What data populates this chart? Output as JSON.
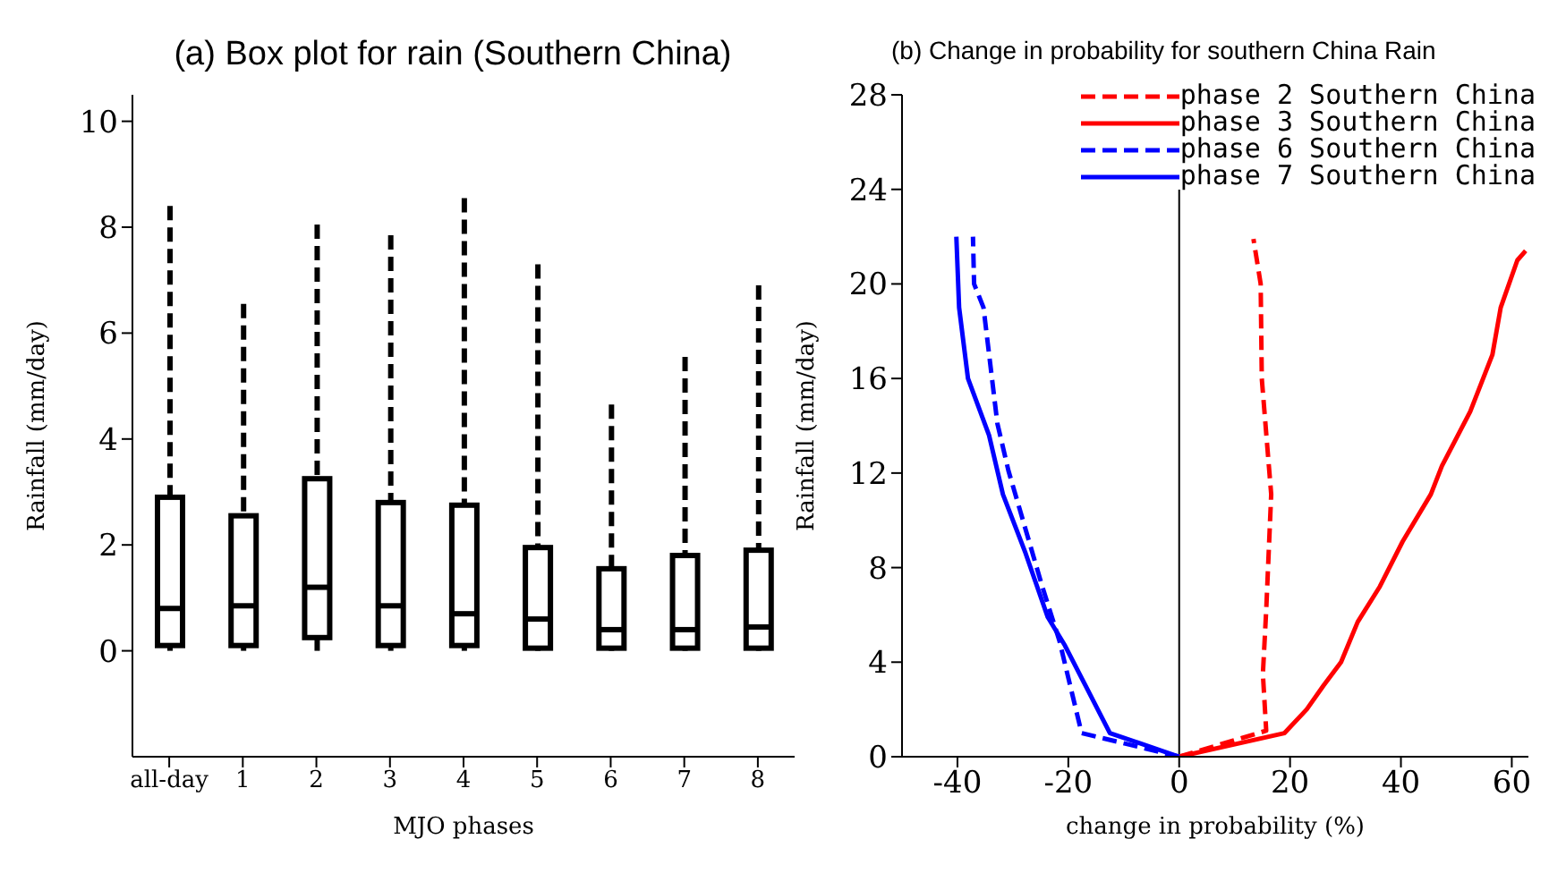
{
  "chart_data": [
    {
      "type": "box",
      "title": "(a) Box plot for rain (Southern China)",
      "xlabel": "MJO phases",
      "ylabel": "Rainfall (mm/day)",
      "categories": [
        "all-day",
        "1",
        "2",
        "3",
        "4",
        "5",
        "6",
        "7",
        "8"
      ],
      "ylim": [
        -2,
        10.5
      ],
      "yticks": [
        0,
        2,
        4,
        6,
        8,
        10
      ],
      "line_style": "dashed",
      "color": "#000000",
      "boxes": [
        {
          "low": 0,
          "q1": 0.1,
          "median": 0.8,
          "q3": 2.9,
          "high": 8.4
        },
        {
          "low": 0,
          "q1": 0.1,
          "median": 0.85,
          "q3": 2.55,
          "high": 6.55
        },
        {
          "low": 0,
          "q1": 0.25,
          "median": 1.2,
          "q3": 3.25,
          "high": 8.05
        },
        {
          "low": 0,
          "q1": 0.1,
          "median": 0.85,
          "q3": 2.8,
          "high": 7.85
        },
        {
          "low": 0,
          "q1": 0.1,
          "median": 0.7,
          "q3": 2.75,
          "high": 8.55
        },
        {
          "low": 0,
          "q1": 0.05,
          "median": 0.6,
          "q3": 1.95,
          "high": 7.3
        },
        {
          "low": 0,
          "q1": 0.05,
          "median": 0.4,
          "q3": 1.55,
          "high": 4.65
        },
        {
          "low": 0,
          "q1": 0.05,
          "median": 0.4,
          "q3": 1.8,
          "high": 5.55
        },
        {
          "low": 0,
          "q1": 0.05,
          "median": 0.45,
          "q3": 1.9,
          "high": 6.9
        }
      ]
    },
    {
      "type": "line",
      "title": "(b) Change in probability for southern China Rain",
      "xlabel": "change in probability (%)",
      "ylabel": "Rainfall (mm/day)",
      "xlim": [
        -50,
        63
      ],
      "xticks": [
        -40,
        -20,
        0,
        20,
        40,
        60
      ],
      "ylim": [
        0,
        28
      ],
      "yticks": [
        0,
        4,
        8,
        12,
        16,
        20,
        24,
        28
      ],
      "legend": "top right",
      "marker": "none",
      "ref_lines": [
        {
          "axis": "x",
          "value": 0,
          "color": "#000000"
        }
      ],
      "series": [
        {
          "name": "phase 2 Southern China",
          "color": "#ff0000",
          "line_style": "dashed",
          "x": [
            0,
            15.7,
            15.1,
            15.7,
            16.6,
            15.9,
            14.9,
            14.7,
            13.4
          ],
          "values": [
            0,
            1.1,
            3.5,
            6.2,
            11.1,
            13.1,
            16,
            20,
            21.9
          ]
        },
        {
          "name": "phase 3 Southern China",
          "color": "#ff0000",
          "line_style": "solid",
          "x": [
            0,
            19,
            23,
            26,
            29.2,
            32.2,
            36.2,
            40.3,
            45.4,
            47.4,
            52.5,
            56.5,
            58,
            61,
            62.5
          ],
          "values": [
            0,
            1,
            2,
            3,
            4,
            5.7,
            7.2,
            9.1,
            11.1,
            12.3,
            14.6,
            17,
            19,
            21,
            21.4
          ]
        },
        {
          "name": "phase 6 Southern China",
          "color": "#0000ff",
          "line_style": "dashed",
          "x": [
            0,
            -17.6,
            -21.6,
            -24.7,
            -30.8,
            -32.8,
            -35.3,
            -37,
            -37.2
          ],
          "values": [
            0,
            1,
            4.9,
            7.2,
            12.1,
            14.1,
            19,
            20,
            22
          ]
        },
        {
          "name": "phase 7 Southern China",
          "color": "#0000ff",
          "line_style": "solid",
          "x": [
            0,
            -12.5,
            -20.6,
            -23.7,
            -27.7,
            -31.8,
            -34.3,
            -38.1,
            -39.7,
            -40.2
          ],
          "values": [
            0,
            1,
            4.7,
            5.9,
            8.6,
            11.1,
            13.6,
            16,
            19,
            22
          ]
        }
      ]
    }
  ]
}
